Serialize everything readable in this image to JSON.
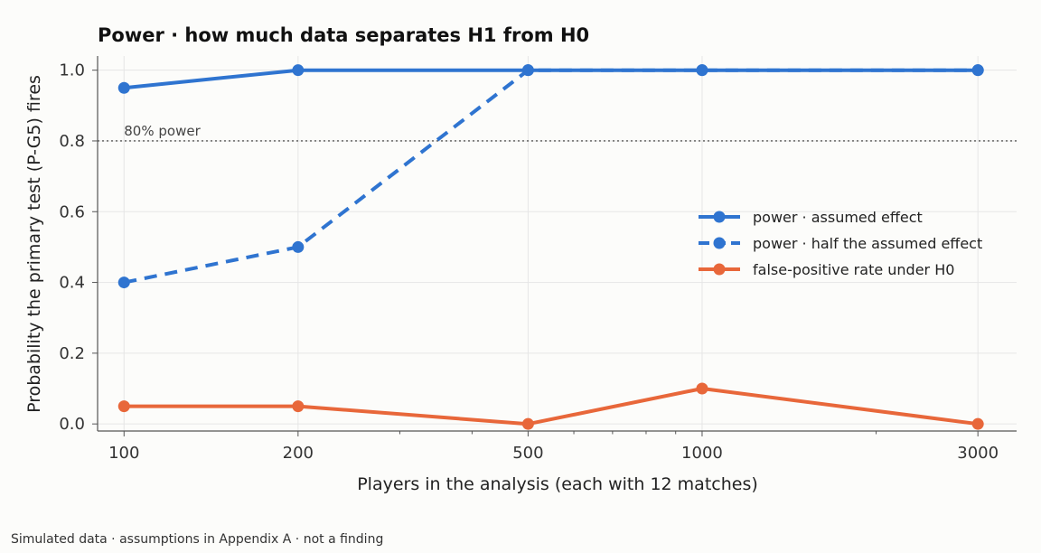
{
  "chart_data": {
    "type": "line",
    "title": "Power · how much data separates H1 from H0",
    "xlabel": "Players in the analysis (each with 12 matches)",
    "ylabel": "Probability the primary test (P-G5) fires",
    "x_scale": "log",
    "x": [
      100,
      200,
      500,
      1000,
      3000
    ],
    "x_tick_labels": [
      "100",
      "200",
      "500",
      "1000",
      "3000"
    ],
    "xlim": [
      90,
      3500
    ],
    "ylim": [
      -0.02,
      1.04
    ],
    "y_ticks": [
      0.0,
      0.2,
      0.4,
      0.6,
      0.8,
      1.0
    ],
    "y_tick_labels": [
      "0.0",
      "0.2",
      "0.4",
      "0.6",
      "0.8",
      "1.0"
    ],
    "grid": true,
    "legend_position": "center-right",
    "reference_line": {
      "y": 0.8,
      "label": "80% power"
    },
    "series": [
      {
        "name": "power · assumed effect",
        "values": [
          0.95,
          1.0,
          1.0,
          1.0,
          1.0
        ],
        "color": "#2f74d0",
        "style": "solid"
      },
      {
        "name": "power · half the assumed effect",
        "values": [
          0.4,
          0.5,
          1.0,
          1.0,
          1.0
        ],
        "color": "#2f74d0",
        "style": "dashed"
      },
      {
        "name": "false-positive rate under H0",
        "values": [
          0.05,
          0.05,
          0.0,
          0.1,
          0.0
        ],
        "color": "#e8673a",
        "style": "solid"
      }
    ]
  },
  "footnote": "Simulated data · assumptions in Appendix A · not a finding"
}
